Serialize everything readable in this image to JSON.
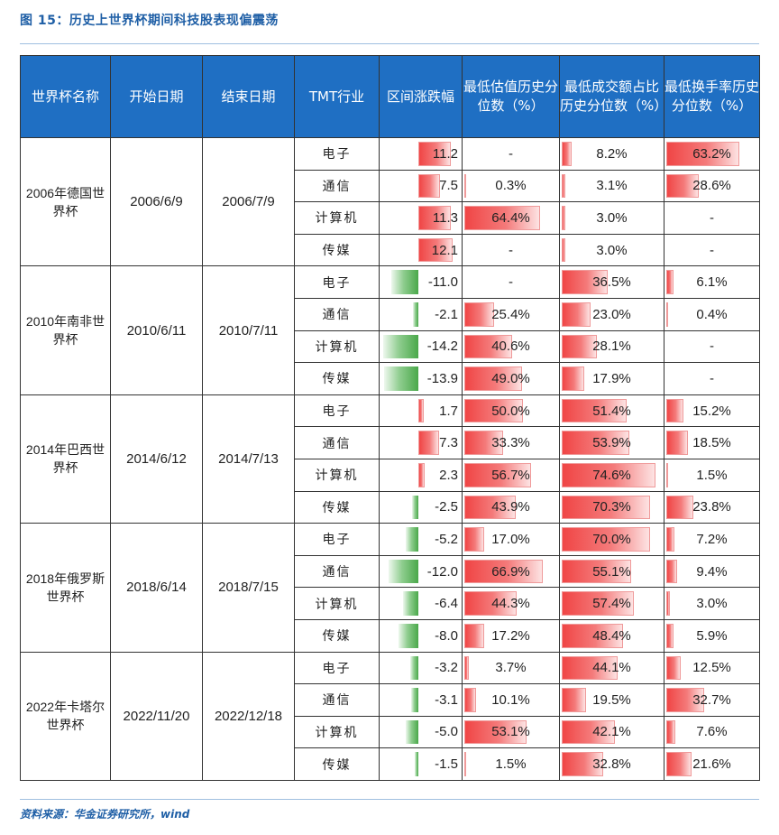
{
  "title": "图 15：历史上世界杯期间科技股表现偏震荡",
  "source": "资料来源：华金证券研究所，wind",
  "headers": [
    "世界杯名称",
    "开始日期",
    "结束日期",
    "TMT行业",
    "区间涨跌幅",
    "最低估值历史分位数（%）",
    "最低成交额占比历史分位数（%）",
    "最低换手率历史分位数（%）"
  ],
  "groups": [
    {
      "name": "2006年德国世界杯",
      "start": "2006/6/9",
      "end": "2006/7/9",
      "rows": [
        {
          "industry": "电子",
          "change": "11.2",
          "change_v": 11.2,
          "val": "-",
          "val_v": null,
          "amt": "8.2%",
          "amt_v": 8.2,
          "turn": "63.2%",
          "turn_v": 63.2
        },
        {
          "industry": "通信",
          "change": "7.5",
          "change_v": 7.5,
          "val": "0.3%",
          "val_v": 0.3,
          "amt": "3.1%",
          "amt_v": 3.1,
          "turn": "28.6%",
          "turn_v": 28.6
        },
        {
          "industry": "计算机",
          "change": "11.3",
          "change_v": 11.3,
          "val": "64.4%",
          "val_v": 64.4,
          "amt": "3.0%",
          "amt_v": 3.0,
          "turn": "-",
          "turn_v": null
        },
        {
          "industry": "传媒",
          "change": "12.1",
          "change_v": 12.1,
          "val": "-",
          "val_v": null,
          "amt": "3.0%",
          "amt_v": 3.0,
          "turn": "-",
          "turn_v": null
        }
      ]
    },
    {
      "name": "2010年南非世界杯",
      "start": "2010/6/11",
      "end": "2010/7/11",
      "rows": [
        {
          "industry": "电子",
          "change": "-11.0",
          "change_v": -11.0,
          "val": "-",
          "val_v": null,
          "amt": "36.5%",
          "amt_v": 36.5,
          "turn": "6.1%",
          "turn_v": 6.1
        },
        {
          "industry": "通信",
          "change": "-2.1",
          "change_v": -2.1,
          "val": "25.4%",
          "val_v": 25.4,
          "amt": "23.0%",
          "amt_v": 23.0,
          "turn": "0.4%",
          "turn_v": 0.4
        },
        {
          "industry": "计算机",
          "change": "-14.2",
          "change_v": -14.2,
          "val": "40.6%",
          "val_v": 40.6,
          "amt": "28.1%",
          "amt_v": 28.1,
          "turn": "-",
          "turn_v": null
        },
        {
          "industry": "传媒",
          "change": "-13.9",
          "change_v": -13.9,
          "val": "49.0%",
          "val_v": 49.0,
          "amt": "17.9%",
          "amt_v": 17.9,
          "turn": "-",
          "turn_v": null
        }
      ]
    },
    {
      "name": "2014年巴西世界杯",
      "start": "2014/6/12",
      "end": "2014/7/13",
      "rows": [
        {
          "industry": "电子",
          "change": "1.7",
          "change_v": 1.7,
          "val": "50.0%",
          "val_v": 50.0,
          "amt": "51.4%",
          "amt_v": 51.4,
          "turn": "15.2%",
          "turn_v": 15.2
        },
        {
          "industry": "通信",
          "change": "7.3",
          "change_v": 7.3,
          "val": "33.3%",
          "val_v": 33.3,
          "amt": "53.9%",
          "amt_v": 53.9,
          "turn": "18.5%",
          "turn_v": 18.5
        },
        {
          "industry": "计算机",
          "change": "2.3",
          "change_v": 2.3,
          "val": "56.7%",
          "val_v": 56.7,
          "amt": "74.6%",
          "amt_v": 74.6,
          "turn": "1.5%",
          "turn_v": 1.5
        },
        {
          "industry": "传媒",
          "change": "-2.5",
          "change_v": -2.5,
          "val": "43.9%",
          "val_v": 43.9,
          "amt": "70.3%",
          "amt_v": 70.3,
          "turn": "23.8%",
          "turn_v": 23.8
        }
      ]
    },
    {
      "name": "2018年俄罗斯世界杯",
      "start": "2018/6/14",
      "end": "2018/7/15",
      "rows": [
        {
          "industry": "电子",
          "change": "-5.2",
          "change_v": -5.2,
          "val": "17.0%",
          "val_v": 17.0,
          "amt": "70.0%",
          "amt_v": 70.0,
          "turn": "7.2%",
          "turn_v": 7.2
        },
        {
          "industry": "通信",
          "change": "-12.0",
          "change_v": -12.0,
          "val": "66.9%",
          "val_v": 66.9,
          "amt": "55.1%",
          "amt_v": 55.1,
          "turn": "9.4%",
          "turn_v": 9.4
        },
        {
          "industry": "计算机",
          "change": "-6.4",
          "change_v": -6.4,
          "val": "44.3%",
          "val_v": 44.3,
          "amt": "57.4%",
          "amt_v": 57.4,
          "turn": "3.0%",
          "turn_v": 3.0
        },
        {
          "industry": "传媒",
          "change": "-8.0",
          "change_v": -8.0,
          "val": "17.2%",
          "val_v": 17.2,
          "amt": "48.4%",
          "amt_v": 48.4,
          "turn": "5.9%",
          "turn_v": 5.9
        }
      ]
    },
    {
      "name": "2022年卡塔尔世界杯",
      "start": "2022/11/20",
      "end": "2022/12/18",
      "rows": [
        {
          "industry": "电子",
          "change": "-3.2",
          "change_v": -3.2,
          "val": "3.7%",
          "val_v": 3.7,
          "amt": "44.1%",
          "amt_v": 44.1,
          "turn": "12.5%",
          "turn_v": 12.5
        },
        {
          "industry": "通信",
          "change": "-3.1",
          "change_v": -3.1,
          "val": "10.1%",
          "val_v": 10.1,
          "amt": "19.5%",
          "amt_v": 19.5,
          "turn": "32.7%",
          "turn_v": 32.7
        },
        {
          "industry": "计算机",
          "change": "-5.0",
          "change_v": -5.0,
          "val": "53.1%",
          "val_v": 53.1,
          "amt": "42.1%",
          "amt_v": 42.1,
          "turn": "7.6%",
          "turn_v": 7.6
        },
        {
          "industry": "传媒",
          "change": "-1.5",
          "change_v": -1.5,
          "val": "1.5%",
          "val_v": 1.5,
          "amt": "32.8%",
          "amt_v": 32.8,
          "turn": "21.6%",
          "turn_v": 21.6
        }
      ]
    }
  ]
}
